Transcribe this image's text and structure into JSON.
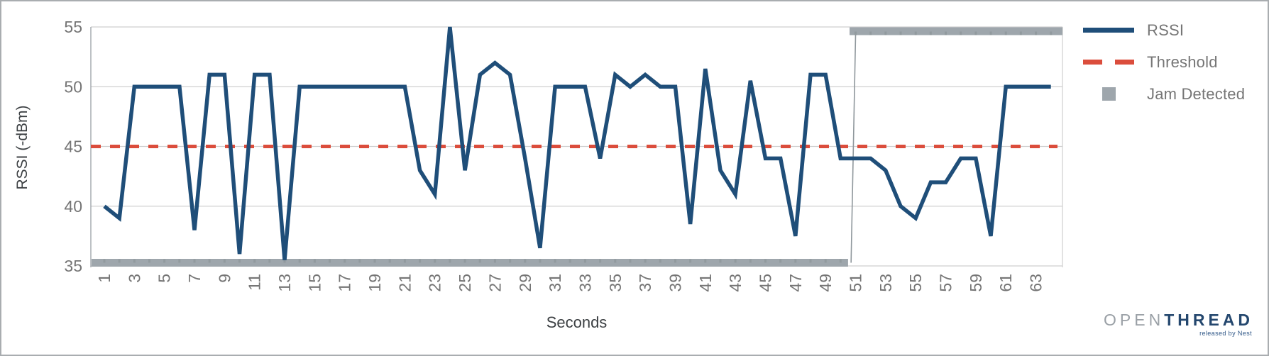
{
  "chart_data": {
    "type": "line",
    "title": "",
    "xlabel": "Seconds",
    "ylabel": "RSSI (-dBm)",
    "ylim": [
      35,
      55
    ],
    "y_ticks": [
      55,
      50,
      45,
      40,
      35
    ],
    "x_tick_labels": [
      1,
      3,
      5,
      7,
      9,
      11,
      13,
      15,
      17,
      19,
      21,
      23,
      25,
      27,
      29,
      31,
      33,
      35,
      37,
      39,
      41,
      43,
      45,
      47,
      49,
      51,
      53,
      55,
      57,
      59,
      61,
      63
    ],
    "grid": "horizontal",
    "legend_position": "right",
    "series": [
      {
        "name": "RSSI",
        "type": "line",
        "color": "#1f4e79",
        "x_start": 1,
        "values": [
          40,
          39,
          50,
          50,
          50,
          50,
          38,
          51,
          51,
          36,
          51,
          51,
          35.5,
          50,
          50,
          50,
          50,
          50,
          50,
          50,
          50,
          43,
          41,
          55,
          43,
          51,
          52,
          51,
          44,
          36.5,
          50,
          50,
          50,
          44,
          51,
          50,
          51,
          50,
          50,
          38.5,
          51.5,
          43,
          41,
          50.5,
          44,
          44,
          37.5,
          51,
          51,
          44,
          44,
          44,
          43,
          40,
          39,
          42,
          42,
          44,
          44,
          37.5,
          50,
          50,
          50,
          50
        ]
      },
      {
        "name": "Threshold",
        "type": "dashed-line",
        "color": "#db4d3c",
        "value": 45
      },
      {
        "name": "Jam Detected",
        "type": "step",
        "color": "#9ea6ac",
        "off_value": 35,
        "on_value": 55,
        "last_off_second": 50,
        "first_on_second": 51
      }
    ]
  },
  "legend": {
    "items": [
      {
        "label": "RSSI",
        "swatch": "line",
        "color": "#1f4e79"
      },
      {
        "label": "Threshold",
        "swatch": "dashes",
        "color": "#db4d3c"
      },
      {
        "label": "Jam Detected",
        "swatch": "square",
        "color": "#9ea6ac"
      }
    ]
  },
  "axes": {
    "x_title": "Seconds",
    "y_title": "RSSI (-dBm)"
  },
  "colors": {
    "grid": "#cfcfcf",
    "axis_line": "#9aa0a6",
    "tick_text": "#757575",
    "axis_title_text": "#3c4043",
    "jam_connector": "#8f979c",
    "bar_tick_nub": "#878f94"
  },
  "logo": {
    "part1": "OPEN",
    "part2": "THREAD",
    "tagline": "released by Nest"
  }
}
